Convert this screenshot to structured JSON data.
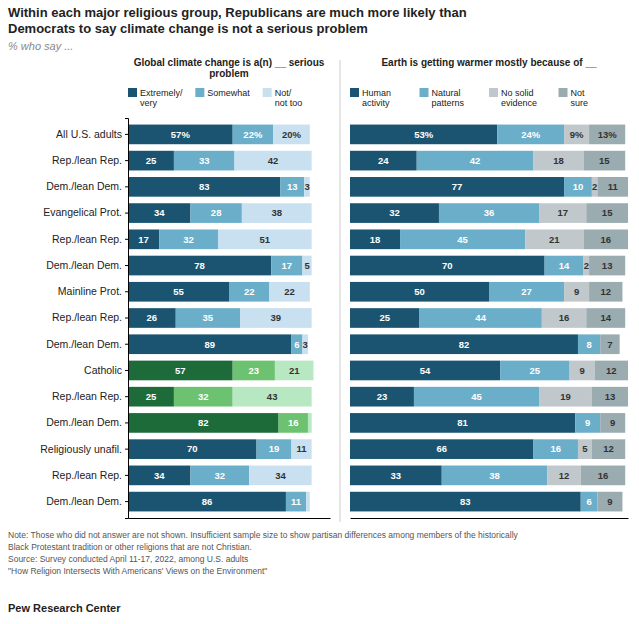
{
  "title": [
    "Within each major religious group, Republicans are much more likely than",
    "Democrats to say climate change is not a serious problem"
  ],
  "subtitle": "% who say ...",
  "notes": [
    "Note: Those who did not answer are not shown. Insufficient sample size to show partisan differences among members of the historically",
    "Black Protestant tradition or other religions that are not Christian.",
    "Source: Survey conducted April 11-17, 2022, among U.S. adults",
    "\"How Religion Intersects With Americans' Views on the Environment\""
  ],
  "footer": "Pew Research Center",
  "chart_data": [
    {
      "type": "bar",
      "orientation": "horizontal",
      "stacked": true,
      "data_labels": true,
      "tick_labels": "y",
      "title": "Global climate change is a(n) __ serious problem",
      "categories": [
        "All U.S. adults",
        "Rep./lean Rep.",
        "Dem./lean Dem.",
        "Evangelical Prot.",
        "Rep./lean Rep.",
        "Dem./lean Dem.",
        "Mainline Prot.",
        "Rep./lean Rep.",
        "Dem./lean Dem.",
        "Catholic",
        "Rep./lean Rep.",
        "Dem./lean Dem.",
        "Religiously unafil.",
        "Rep./lean Rep.",
        "Dem./lean Dem."
      ],
      "xlim": [
        0,
        110
      ],
      "series": [
        {
          "name": "Extremely/\nvery",
          "colors": [
            "#1b5470",
            "#1b5470",
            "#1b5470",
            "#1b5470",
            "#1b5470",
            "#1b5470",
            "#1b5470",
            "#1b5470",
            "#1b5470",
            "#1e6b3a",
            "#1e6b3a",
            "#1e6b3a",
            "#1b5470",
            "#1b5470",
            "#1b5470"
          ],
          "values": [
            57,
            25,
            83,
            34,
            17,
            78,
            55,
            26,
            89,
            57,
            25,
            82,
            70,
            34,
            86
          ],
          "value_labels": [
            "57%",
            "25",
            "83",
            "34",
            "17",
            "78",
            "55",
            "26",
            "89",
            "57",
            "25",
            "82",
            "70",
            "34",
            "86"
          ]
        },
        {
          "name": "Somewhat",
          "colors": [
            "#6aaec9",
            "#6aaec9",
            "#6aaec9",
            "#6aaec9",
            "#6aaec9",
            "#6aaec9",
            "#6aaec9",
            "#6aaec9",
            "#6aaec9",
            "#6dc272",
            "#6dc272",
            "#6dc272",
            "#6aaec9",
            "#6aaec9",
            "#6aaec9"
          ],
          "values": [
            22,
            33,
            13,
            28,
            32,
            17,
            22,
            35,
            6,
            23,
            32,
            16,
            19,
            32,
            11
          ],
          "value_labels": [
            "22%",
            "33",
            "13",
            "28",
            "32",
            "17",
            "22",
            "35",
            "6",
            "23",
            "32",
            "16",
            "19",
            "32",
            "11"
          ]
        },
        {
          "name": "Not/\nnot too",
          "colors": [
            "#c8e0ef",
            "#c8e0ef",
            "#c8e0ef",
            "#c8e0ef",
            "#c8e0ef",
            "#c8e0ef",
            "#c8e0ef",
            "#c8e0ef",
            "#c8e0ef",
            "#b8e8c2",
            "#b8e8c2",
            "#b8e8c2",
            "#c8e0ef",
            "#c8e0ef",
            "#c8e0ef"
          ],
          "values": [
            20,
            42,
            3,
            38,
            51,
            5,
            22,
            39,
            3,
            21,
            43,
            2,
            11,
            34,
            2
          ],
          "value_labels": [
            "20%",
            "42",
            "3",
            "38",
            "51",
            "5",
            "22",
            "39",
            "3",
            "21",
            "43",
            null,
            "11",
            "34",
            null
          ]
        }
      ]
    },
    {
      "type": "bar",
      "orientation": "horizontal",
      "stacked": true,
      "data_labels": true,
      "tick_labels": false,
      "title": "Earth is getting warmer mostly because of __",
      "categories": [
        null,
        null,
        null,
        null,
        null,
        null,
        null,
        null,
        null,
        null,
        null,
        null,
        null,
        null,
        null
      ],
      "xlim": [
        0,
        100
      ],
      "series": [
        {
          "name": "Human\nactivity",
          "color": "#1b5470",
          "values": [
            53,
            24,
            77,
            32,
            18,
            70,
            50,
            25,
            82,
            54,
            23,
            81,
            66,
            33,
            83
          ],
          "value_labels": [
            "53%",
            "24",
            "77",
            "32",
            "18",
            "70",
            "50",
            "25",
            "82",
            "54",
            "23",
            "81",
            "66",
            "33",
            "83"
          ]
        },
        {
          "name": "Natural\npatterns",
          "color": "#6aaec9",
          "values": [
            24,
            42,
            10,
            36,
            45,
            14,
            27,
            44,
            8,
            25,
            45,
            9,
            16,
            38,
            6
          ],
          "value_labels": [
            "24%",
            "42",
            "10",
            "36",
            "45",
            "14",
            "27",
            "44",
            "8",
            "25",
            "45",
            "9",
            "16",
            "38",
            "6"
          ]
        },
        {
          "name": "No solid\nevidence",
          "color": "#c0c8cc",
          "values": [
            9,
            18,
            2,
            17,
            21,
            2,
            9,
            16,
            0,
            9,
            19,
            0,
            5,
            12,
            0
          ],
          "value_labels": [
            "9%",
            "18",
            "2",
            "17",
            "21",
            "2",
            "9",
            "16",
            null,
            "9",
            "19",
            null,
            "5",
            "12",
            null
          ]
        },
        {
          "name": "Not\nsure",
          "color": "#9aacb0",
          "values": [
            13,
            15,
            11,
            15,
            16,
            13,
            12,
            14,
            7,
            12,
            13,
            9,
            12,
            16,
            9
          ],
          "value_labels": [
            "13%",
            "15",
            "11",
            "15",
            "16",
            "13",
            "12",
            "14",
            "7",
            "12",
            "13",
            "9",
            "12",
            "16",
            "9"
          ]
        }
      ]
    }
  ]
}
